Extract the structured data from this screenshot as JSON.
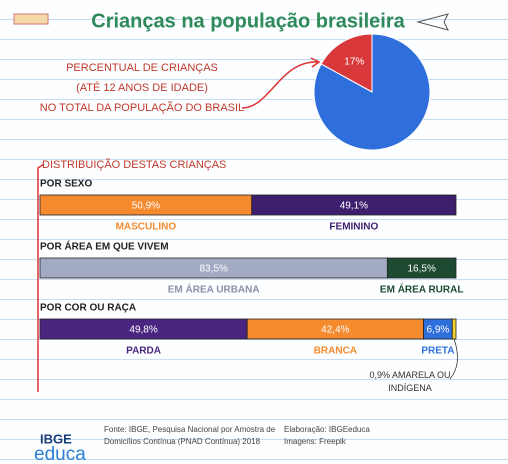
{
  "title": "Crianças na população brasileira",
  "section_title": "DISTRIBUIÇÃO DESTAS CRIANÇAS",
  "footer": {
    "logo_top": "IBGE",
    "logo_bottom": "educa",
    "source": "Fonte: IBGE, Pesquisa Nacional por Amostra de Domicílios Contínua (PNAD Contínua) 2018",
    "credit": "Elaboração: IBGEeduca",
    "images": "Imagens: Freepik"
  },
  "chart_data": [
    {
      "type": "pie",
      "label_lines": [
        "PERCENTUAL DE CRIANÇAS",
        "(ATÉ 12 ANOS DE IDADE)",
        "NO TOTAL DA POPULAÇÃO DO BRASIL"
      ],
      "values": [
        17,
        83
      ],
      "value_labels": [
        "17%",
        null
      ],
      "colors": [
        "#d9383a",
        "#2f6fdc"
      ]
    },
    {
      "type": "stacked-bar",
      "title": "POR SEXO",
      "xlim": [
        0,
        100
      ],
      "series": [
        {
          "name": "MASCULINO",
          "color": "#f58a2e",
          "values": [
            50.9
          ],
          "value_labels": [
            "50,9%"
          ]
        },
        {
          "name": "FEMININO",
          "color": "#3d1f6e",
          "values": [
            49.1
          ],
          "value_labels": [
            "49,1%"
          ]
        }
      ]
    },
    {
      "type": "stacked-bar",
      "title": "POR ÁREA EM QUE VIVEM",
      "xlim": [
        0,
        100
      ],
      "series": [
        {
          "name": "EM ÁREA URBANA",
          "color": "#a3aac4",
          "values": [
            83.5
          ],
          "value_labels": [
            "83,5%"
          ]
        },
        {
          "name": "EM ÁREA RURAL",
          "color": "#1d4a30",
          "values": [
            16.5
          ],
          "value_labels": [
            "16,5%"
          ]
        }
      ]
    },
    {
      "type": "stacked-bar",
      "title": "POR COR OU RAÇA",
      "xlim": [
        0,
        100
      ],
      "series": [
        {
          "name": "PARDA",
          "color": "#4a2580",
          "values": [
            49.8
          ],
          "value_labels": [
            "49,8%"
          ]
        },
        {
          "name": "BRANCA",
          "color": "#f58a2e",
          "values": [
            42.4
          ],
          "value_labels": [
            "42,4%"
          ]
        },
        {
          "name": "PRETA",
          "color": "#2f6fdc",
          "values": [
            6.9
          ],
          "value_labels": [
            "6,9%"
          ]
        },
        {
          "name": "AMARELA OU INDÍGENA",
          "color": "#f2d230",
          "values": [
            0.9
          ],
          "value_labels": [
            "0,9%"
          ]
        }
      ]
    }
  ]
}
